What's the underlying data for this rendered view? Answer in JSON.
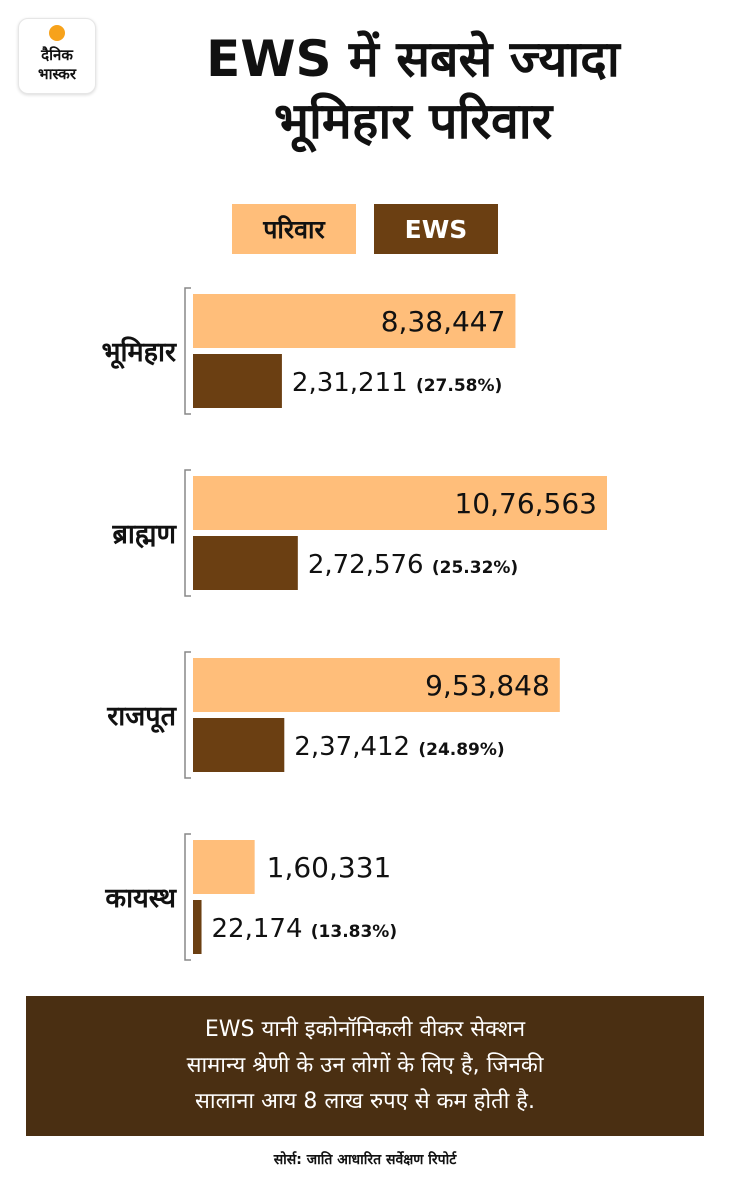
{
  "logo": {
    "line1": "दैनिक",
    "line2": "भास्कर"
  },
  "title": {
    "line1": "EWS में सबसे ज्यादा",
    "line2": "भूमिहार परिवार"
  },
  "colors": {
    "families": "#ffbe7a",
    "ews": "#6b3f12",
    "note_bg": "#4a2f12"
  },
  "chart_data": {
    "type": "bar",
    "orientation": "horizontal",
    "categories": [
      "भूमिहार",
      "ब्राह्मण",
      "राजपूत",
      "कायस्थ"
    ],
    "legend_placement": "top",
    "series": [
      {
        "name": "परिवार",
        "color": "#ffbe7a",
        "values": [
          838447,
          1076563,
          953848,
          160331
        ],
        "labels": [
          "8,38,447",
          "10,76,563",
          "9,53,848",
          "1,60,331"
        ]
      },
      {
        "name": "EWS",
        "color": "#6b3f12",
        "values": [
          231211,
          272576,
          237412,
          22174
        ],
        "labels": [
          "2,31,211",
          "2,72,576",
          "2,37,412",
          "22,174"
        ],
        "percent_labels": [
          "(27.58%)",
          "(25.32%)",
          "(24.89%)",
          "(13.83%)"
        ]
      }
    ],
    "xlim": [
      0,
      1076563
    ],
    "grid": false
  },
  "note": {
    "line1": "EWS यानी इकोनॉमिकली वीकर सेक्शन",
    "line2": "सामान्य श्रेणी के उन लोगों के लिए है, जिनकी",
    "line3": "सालाना आय 8 लाख रुपए से कम होती है."
  },
  "source": "सोर्स: जाति आधारित सर्वेक्षण रिपोर्ट"
}
